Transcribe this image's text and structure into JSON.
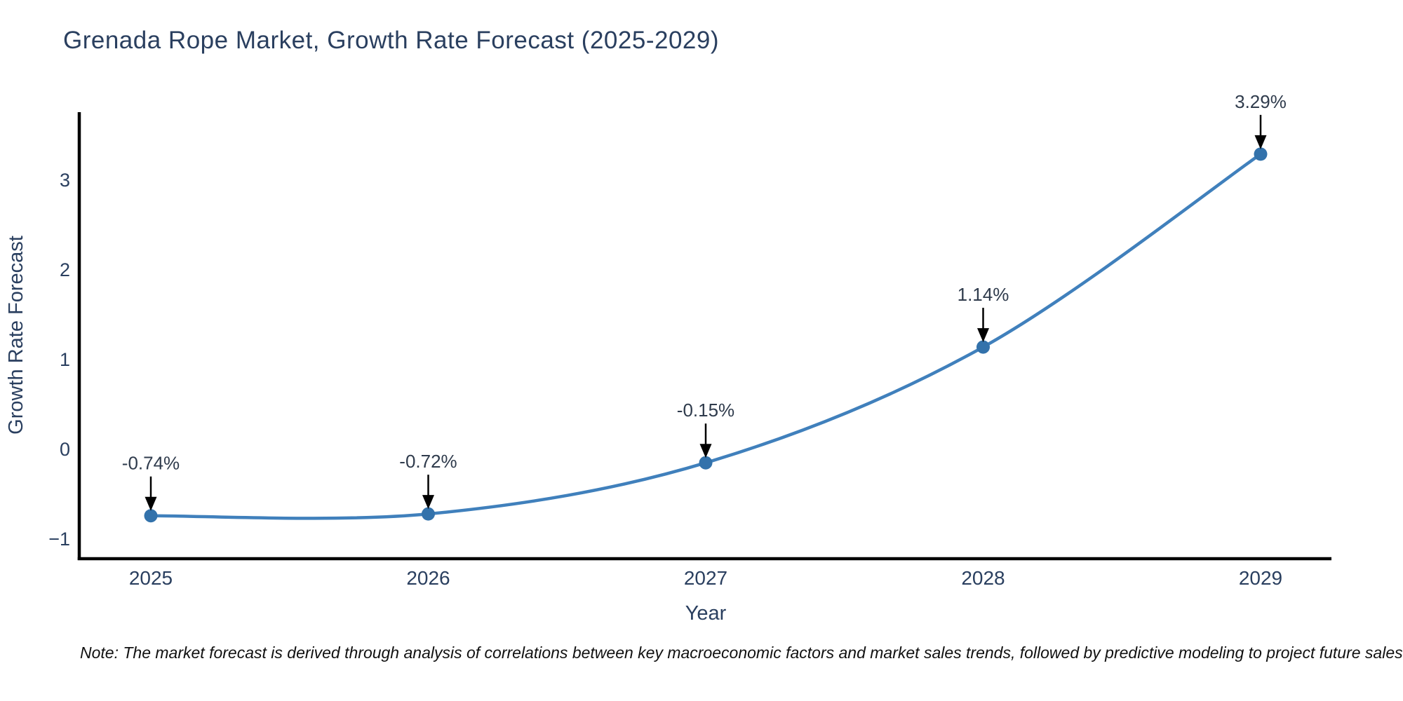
{
  "title": "Grenada Rope Market, Growth Rate Forecast (2025-2029)",
  "note": "Note: The market forecast is derived through analysis of correlations between key macroeconomic factors and market sales trends, followed by predictive modeling to project future sales",
  "chart_data": {
    "type": "line",
    "title": "Grenada Rope Market, Growth Rate Forecast (2025-2029)",
    "xlabel": "Year",
    "ylabel": "Growth Rate Forecast",
    "x": [
      2025,
      2026,
      2027,
      2028,
      2029
    ],
    "values": [
      -0.74,
      -0.72,
      -0.15,
      1.14,
      3.29
    ],
    "point_labels": [
      "-0.74%",
      "-0.72%",
      "-0.15%",
      "1.14%",
      "3.29%"
    ],
    "line_shape": "spline",
    "markers": true,
    "grid": false,
    "legend": "none",
    "xlim": [
      2024.74,
      2029.26
    ],
    "ylim": [
      -1.22,
      3.76
    ],
    "yticks": [
      {
        "v": -1,
        "label": "−1"
      },
      {
        "v": 0,
        "label": "0"
      },
      {
        "v": 1,
        "label": "1"
      },
      {
        "v": 2,
        "label": "2"
      },
      {
        "v": 3,
        "label": "3"
      }
    ],
    "colors": {
      "line": "#4080bc",
      "marker": "#3372ab",
      "axis": "#000000",
      "tick_label": "#2a3f5f",
      "axis_title": "#2a3f5f",
      "annotation_text": "#2f3b4c",
      "arrow": "#000000",
      "background": "#ffffff"
    }
  }
}
